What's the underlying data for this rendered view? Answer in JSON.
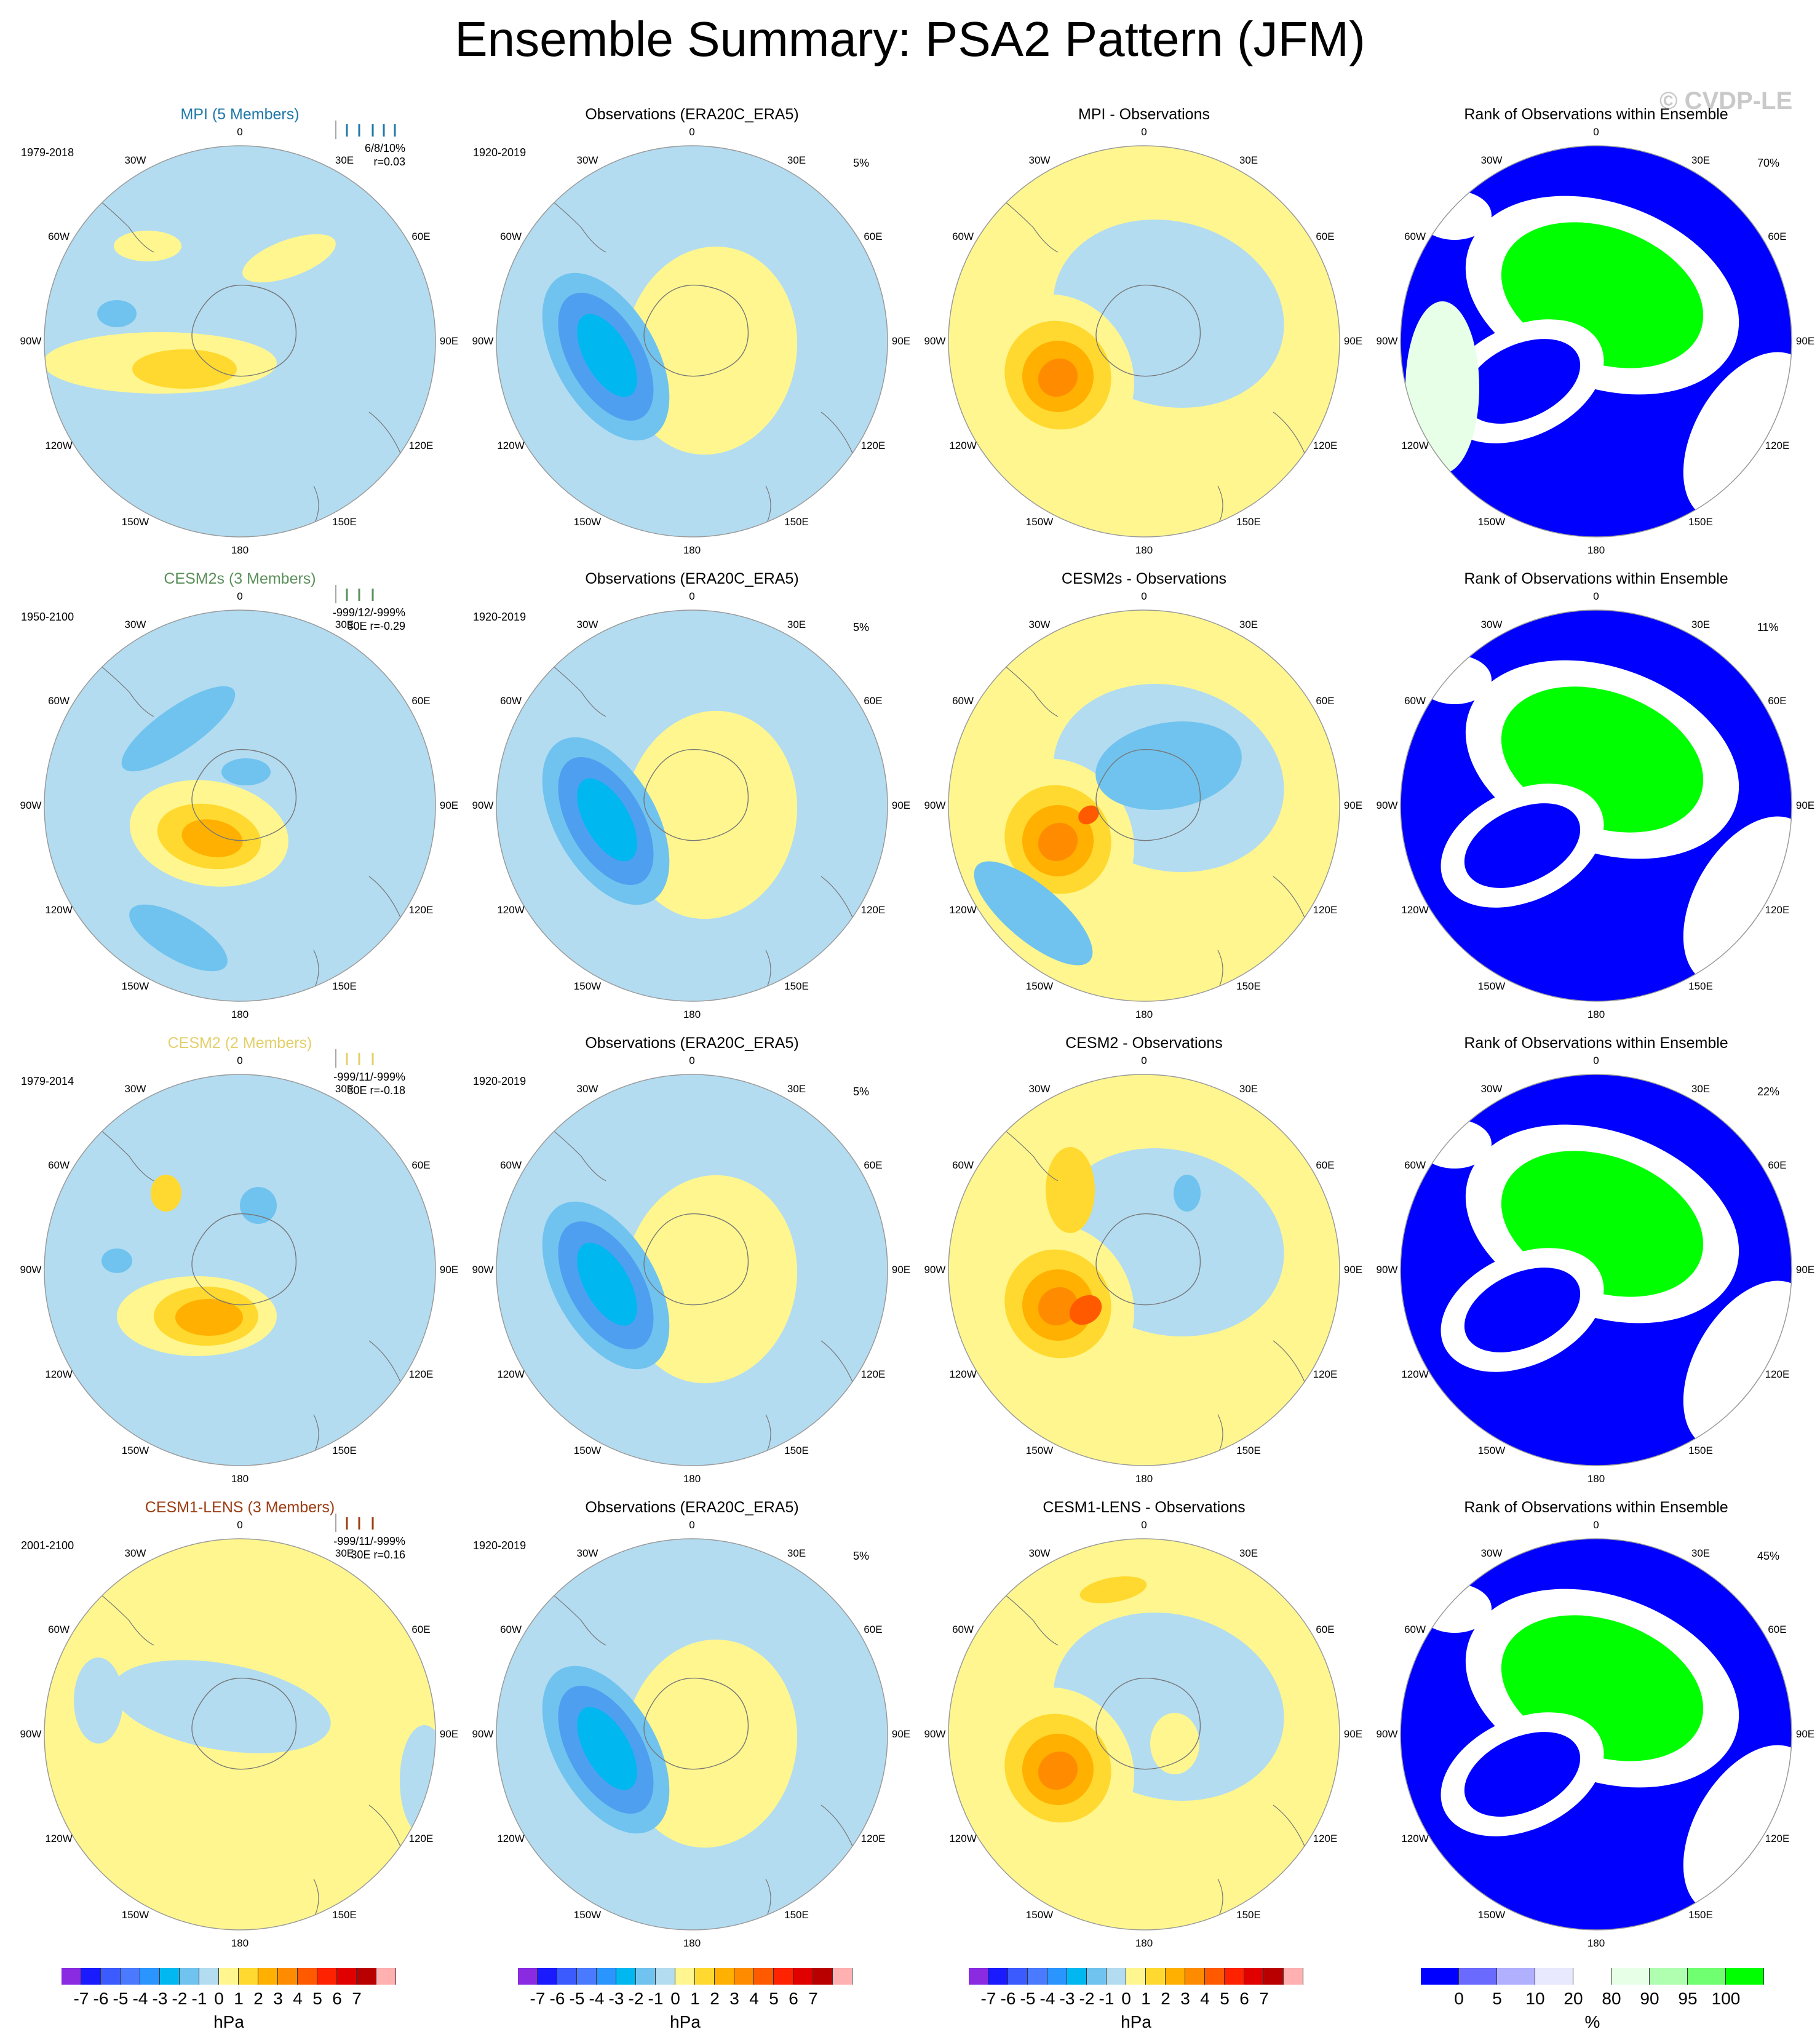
{
  "title": "Ensemble Summary: PSA2 Pattern (JFM)",
  "watermark": "© CVDP-LE",
  "lon_labels": [
    "0",
    "30E",
    "60E",
    "90E",
    "120E",
    "150E",
    "180",
    "150W",
    "120W",
    "90W",
    "60W",
    "30W"
  ],
  "colors": {
    "pos_light": "#fff68f",
    "pos_2": "#ffd92f",
    "pos_3": "#ffb000",
    "pos_4": "#ff8c00",
    "pos_5": "#ff5a00",
    "neg_light": "#b3dcf1",
    "neg_2": "#70c3ee",
    "neg_3": "#00b7f0",
    "neg_4": "#4f9ff0",
    "rank_low": "#0000ff",
    "rank_mid": "#ffffff",
    "rank_faint": "#e6ffe6",
    "rank_high": "#00ff00"
  },
  "rows": [
    {
      "model": {
        "title": "MPI (5 Members)",
        "title_color": "#1f78a8",
        "period": "1979-2018",
        "stat1": "6/8/10%",
        "stat2": "r=0.03"
      },
      "obs": {
        "title": "Observations (ERA20C_ERA5)",
        "period": "1920-2019",
        "pct": "5%"
      },
      "diff": {
        "title": "MPI - Observations"
      },
      "rank": {
        "title": "Rank of Observations within Ensemble",
        "pct": "70%"
      }
    },
    {
      "model": {
        "title": "CESM2s (3 Members)",
        "title_color": "#5a8f5a",
        "period": "1950-2100",
        "stat1": "-999/12/-999%",
        "stat2": "30E r=-0.29"
      },
      "obs": {
        "title": "Observations (ERA20C_ERA5)",
        "period": "1920-2019",
        "pct": "5%"
      },
      "diff": {
        "title": "CESM2s - Observations"
      },
      "rank": {
        "title": "Rank of Observations within Ensemble",
        "pct": "11%"
      }
    },
    {
      "model": {
        "title": "CESM2 (2 Members)",
        "title_color": "#e3cf6b",
        "period": "1979-2014",
        "stat1": "-999/11/-999%",
        "stat2": "30E r=-0.18"
      },
      "obs": {
        "title": "Observations (ERA20C_ERA5)",
        "period": "1920-2019",
        "pct": "5%"
      },
      "diff": {
        "title": "CESM2 - Observations"
      },
      "rank": {
        "title": "Rank of Observations within Ensemble",
        "pct": "22%"
      }
    },
    {
      "model": {
        "title": "CESM1-LENS (3 Members)",
        "title_color": "#9b3d12",
        "period": "2001-2100",
        "stat1": "-999/11/-999%",
        "stat2": "30E r=0.16"
      },
      "obs": {
        "title": "Observations (ERA20C_ERA5)",
        "period": "1920-2019",
        "pct": "5%"
      },
      "diff": {
        "title": "CESM1-LENS - Observations"
      },
      "rank": {
        "title": "Rank of Observations within Ensemble",
        "pct": "45%"
      }
    }
  ],
  "colorbar_hpa": {
    "colors": [
      "#8a2be2",
      "#1a1aff",
      "#3b5bff",
      "#4a7aff",
      "#2b95ff",
      "#00b7f0",
      "#70c3ee",
      "#b3dcf1",
      "#fff68f",
      "#ffd92f",
      "#ffb000",
      "#ff8c00",
      "#ff5a00",
      "#ff2200",
      "#e00000",
      "#b80000",
      "#ffb0b0"
    ],
    "ticks": [
      "-7",
      "-6",
      "-5",
      "-4",
      "-3",
      "-2",
      "-1",
      "0",
      "1",
      "2",
      "3",
      "4",
      "5",
      "6",
      "7"
    ],
    "unit": "hPa"
  },
  "colorbar_rank": {
    "colors": [
      "#0000ff",
      "#6a6aff",
      "#b0b0ff",
      "#e8e8ff",
      "#ffffff",
      "#e6ffe6",
      "#b0ffb0",
      "#70ff70",
      "#00ff00"
    ],
    "ticks": [
      "0",
      "5",
      "10",
      "20",
      "80",
      "90",
      "95",
      "100"
    ],
    "unit": "%"
  },
  "chart_data": [
    {
      "type": "heatmap",
      "title": "Ensemble Summary: PSA2 Pattern (JFM)",
      "description_units": "hPa",
      "panels": [
        "MPI (5 Members)",
        "Observations (ERA20C_ERA5)",
        "MPI - Observations",
        "Rank of Observations within Ensemble",
        "CESM2s (3 Members)",
        "Observations (ERA20C_ERA5)",
        "CESM2s - Observations",
        "Rank of Observations within Ensemble",
        "CESM2 (2 Members)",
        "Observations (ERA20C_ERA5)",
        "CESM2 - Observations",
        "Rank of Observations within Ensemble",
        "CESM1-LENS (3 Members)",
        "Observations (ERA20C_ERA5)",
        "CESM1-LENS - Observations",
        "Rank of Observations within Ensemble"
      ],
      "contour_levels_hpa": [
        -7,
        -6,
        -5,
        -4,
        -3,
        -2,
        -1,
        0,
        1,
        2,
        3,
        4,
        5,
        6,
        7
      ],
      "rank_levels_pct": [
        0,
        5,
        10,
        20,
        80,
        90,
        95,
        100
      ]
    }
  ]
}
